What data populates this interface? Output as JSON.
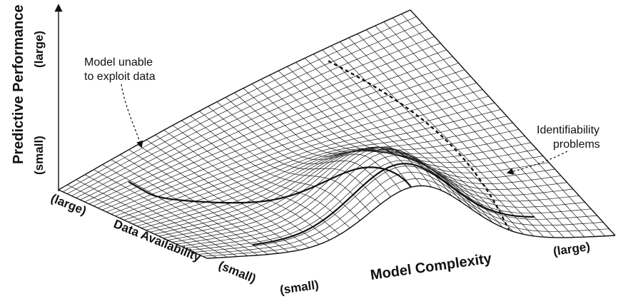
{
  "axes": {
    "y_label": "Predictive Performance",
    "y_low": "(small)",
    "y_high": "(large)",
    "x_label": "Model Complexity",
    "x_low": "(small)",
    "x_high": "(large)",
    "z_label": "Data Availability",
    "z_low": "(small)",
    "z_high": "(large)"
  },
  "annotations": {
    "left_line1": "Model unable",
    "left_line2": "to exploit data",
    "right_line1": "Identifiability",
    "right_line2": "problems"
  }
}
